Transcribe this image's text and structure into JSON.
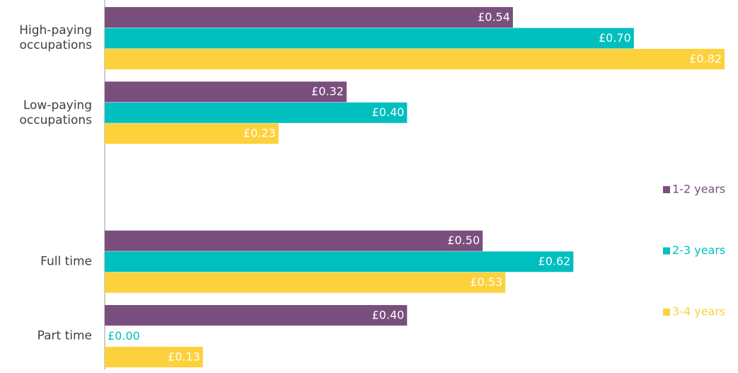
{
  "chart_data": {
    "type": "bar",
    "orientation": "horizontal",
    "categories": [
      "High-paying occupations",
      "Low-paying occupations",
      null,
      "Full time",
      "Part time"
    ],
    "series": [
      {
        "name": "1-2 years",
        "color": "#7a4f7e",
        "values": [
          0.54,
          0.32,
          null,
          0.5,
          0.4
        ],
        "value_labels": [
          "£0.54",
          "£0.32",
          null,
          "£0.50",
          "£0.40"
        ]
      },
      {
        "name": "2-3 years",
        "color": "#00bfbf",
        "values": [
          0.7,
          0.4,
          null,
          0.62,
          0.0
        ],
        "value_labels": [
          "£0.70",
          "£0.40",
          null,
          "£0.62",
          "£0.00"
        ]
      },
      {
        "name": "3-4 years",
        "color": "#fdd13c",
        "values": [
          0.82,
          0.23,
          null,
          0.53,
          0.13
        ],
        "value_labels": [
          "£0.82",
          "£0.23",
          null,
          "£0.53",
          "£0.13"
        ]
      }
    ],
    "legend": "right"
  }
}
